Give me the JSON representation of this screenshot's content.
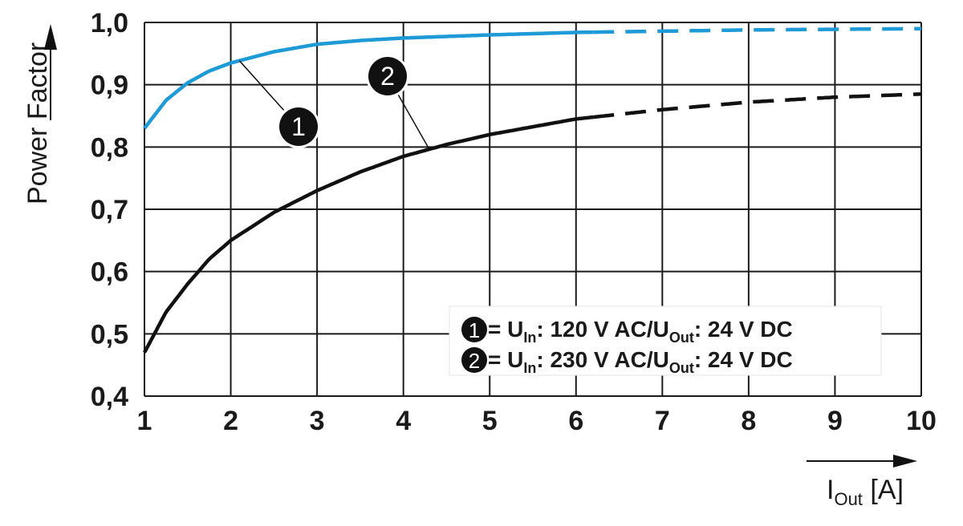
{
  "chart_data": {
    "type": "line",
    "title": "",
    "ylabel": "Power Factor",
    "xlabel_main": "I",
    "xlabel_sub": "Out",
    "xlabel_unit": " [A]",
    "xlim": [
      1,
      10
    ],
    "ylim": [
      0.4,
      1.0
    ],
    "grid": true,
    "x_ticks": [
      "1",
      "2",
      "3",
      "4",
      "5",
      "6",
      "7",
      "8",
      "9",
      "10"
    ],
    "y_ticks": [
      "0,4",
      "0,5",
      "0,6",
      "0,7",
      "0,8",
      "0,9",
      "1,0"
    ],
    "legend_position": "bottom-right",
    "series": [
      {
        "name": "1",
        "color": "#1e9ad6",
        "solid_until_x": 6.2,
        "x": [
          1,
          1.25,
          1.5,
          1.75,
          2,
          2.5,
          3,
          3.5,
          4,
          5,
          6,
          7,
          8,
          9,
          10
        ],
        "y": [
          0.83,
          0.875,
          0.903,
          0.922,
          0.935,
          0.953,
          0.965,
          0.971,
          0.975,
          0.98,
          0.984,
          0.986,
          0.988,
          0.989,
          0.99
        ],
        "legend": {
          "pre": "= U",
          "sub1": "In",
          "mid": ": 120 V AC/U",
          "sub2": "Out",
          "post": ": 24 V DC"
        }
      },
      {
        "name": "2",
        "color": "#111111",
        "solid_until_x": 6.2,
        "x": [
          1,
          1.25,
          1.5,
          1.75,
          2,
          2.5,
          3,
          3.5,
          4,
          4.5,
          5,
          6,
          7,
          8,
          9,
          10
        ],
        "y": [
          0.47,
          0.535,
          0.58,
          0.62,
          0.65,
          0.695,
          0.73,
          0.76,
          0.785,
          0.804,
          0.82,
          0.845,
          0.86,
          0.872,
          0.88,
          0.885
        ],
        "legend": {
          "pre": "= U",
          "sub1": "In",
          "mid": ": 230 V AC/U",
          "sub2": "Out",
          "post": ": 24 V DC"
        }
      }
    ],
    "annotations": [
      {
        "label": "1",
        "series": "1",
        "at_x": 2.1
      },
      {
        "label": "2",
        "series": "2",
        "at_x": 4.3
      }
    ]
  }
}
